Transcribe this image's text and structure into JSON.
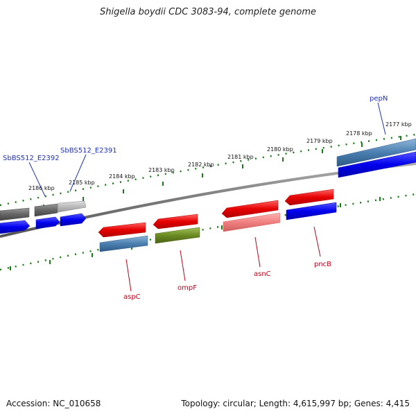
{
  "title": "Shigella boydii CDC 3083-94, complete genome",
  "footer": {
    "accession": "Accession: NC_010658",
    "summary": "Topology: circular; Length: 4,615,997 bp; Genes: 4,415"
  },
  "colors": {
    "tick": "#1a7a1a",
    "backbone": "#7a7a7a",
    "red": "#e60000",
    "steel": "#4a7fb0",
    "blue": "#0000ee",
    "olive": "#6b8a23",
    "pink": "#f08080",
    "dark_gray": "#666666",
    "light_gray": "#bbbbbb",
    "blue_label": "#1f2fb8",
    "red_label": "#c0001a"
  },
  "scale": {
    "labels": [
      "2177 kbp",
      "2178 kbp",
      "2179 kbp",
      "2180 kbp",
      "2181 kbp",
      "2182 kbp",
      "2183 kbp",
      "2184 kbp",
      "2185 kbp",
      "2186 kbp"
    ]
  },
  "genes": {
    "pepN": "pepN",
    "SbBS512_E2391": "SbBS512_E2391",
    "SbBS512_E2392": "SbBS512_E2392",
    "aspC": "aspC",
    "ompF": "ompF",
    "asnC": "asnC",
    "pncB": "pncB"
  }
}
